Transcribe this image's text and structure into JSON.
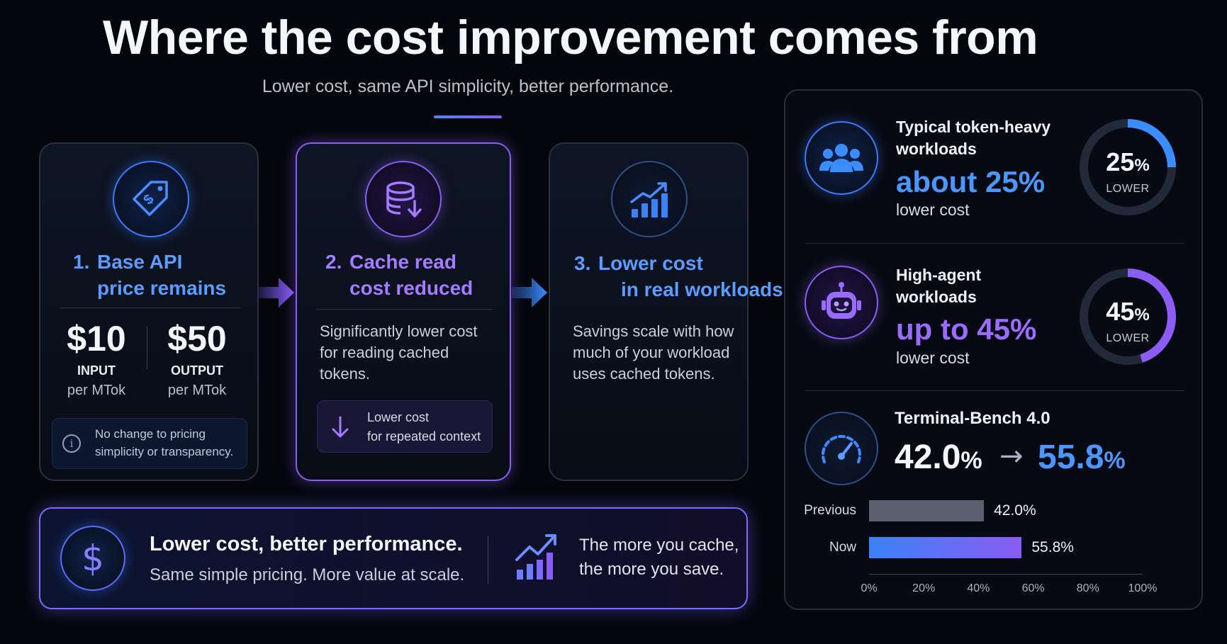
{
  "header": {
    "title": "Where the cost improvement comes from",
    "subtitle": "Lower cost, same API simplicity, better performance."
  },
  "steps": [
    {
      "number": "1.",
      "title_line1": "Base API",
      "title_line2": "price remains",
      "icon": "price-tag-icon",
      "input_price": "$10",
      "input_label": "INPUT",
      "input_unit": "per MTok",
      "output_price": "$50",
      "output_label": "OUTPUT",
      "output_unit": "per MTok",
      "note": "No change to pricing simplicity or transparency.",
      "note_line1": "No change to pricing",
      "note_line2": "simplicity or transparency.",
      "note_icon": "info-icon"
    },
    {
      "number": "2.",
      "title_line1": "Cache read",
      "title_line2": "cost reduced",
      "icon": "database-download-icon",
      "body_line1": "Significantly lower cost",
      "body_line2": "for reading cached",
      "body_line3": "tokens.",
      "note_line1": "Lower cost",
      "note_line2": "for repeated context",
      "note_icon": "arrow-down-icon"
    },
    {
      "number": "3.",
      "title_line1": "Lower cost",
      "title_line2": "in real workloads",
      "icon": "bar-chart-up-icon",
      "body_line1": "Savings scale with how",
      "body_line2": "much of your workload",
      "body_line3": "uses cached tokens."
    }
  ],
  "bottom_banner": {
    "icon": "dollar-icon",
    "headline": "Lower cost, better performance.",
    "subline": "Same simple pricing. More value at scale.",
    "right_icon": "growth-chart-icon",
    "right_line1": "The more you cache,",
    "right_line2": "the more you save."
  },
  "workloads": [
    {
      "icon": "users-icon",
      "title_line1": "Typical token-heavy",
      "title_line2": "workloads",
      "big": "about 25%",
      "sub": "lower cost",
      "ring_value": "25",
      "ring_pct": "%",
      "ring_label": "LOWER",
      "fraction": 0.25,
      "color": "#3b8dff"
    },
    {
      "icon": "robot-icon",
      "title_line1": "High-agent",
      "title_line2": "workloads",
      "big": "up to 45%",
      "sub": "lower cost",
      "ring_value": "45",
      "ring_pct": "%",
      "ring_label": "LOWER",
      "fraction": 0.45,
      "color": "#8b5cf6"
    }
  ],
  "benchmark": {
    "icon": "speedometer-icon",
    "title": "Terminal-Bench 4.0",
    "from_value": "42.0",
    "to_value": "55.8",
    "pct": "%",
    "arrow": "→"
  },
  "chart_data": {
    "type": "bar",
    "orientation": "horizontal",
    "categories": [
      "Previous",
      "Now"
    ],
    "values": [
      42.0,
      55.8
    ],
    "value_labels": [
      "42.0%",
      "55.8%"
    ],
    "xlim": [
      0,
      100
    ],
    "x_ticks": [
      "0%",
      "20%",
      "40%",
      "60%",
      "80%",
      "100%"
    ],
    "colors": [
      "#5a6070",
      "#3b82f6"
    ]
  }
}
